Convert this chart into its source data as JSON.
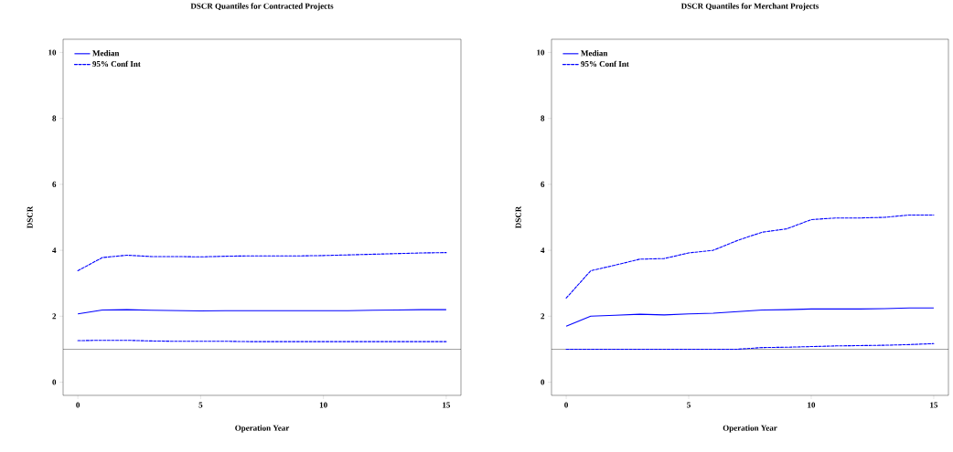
{
  "chart_data": [
    {
      "type": "line",
      "title": "DSCR Quantiles for Contracted Projects",
      "xlabel": "Operation Year",
      "ylabel": "DSCR",
      "x": [
        0,
        1,
        2,
        3,
        4,
        5,
        6,
        7,
        8,
        9,
        10,
        11,
        12,
        13,
        14,
        15
      ],
      "xlim": [
        -0.6,
        15.6
      ],
      "ylim": [
        -0.4,
        10.4
      ],
      "xticks": [
        0,
        5,
        10,
        15
      ],
      "yticks": [
        0,
        2,
        4,
        6,
        8,
        10
      ],
      "grid": false,
      "legend": "top left",
      "marker": "none",
      "series": [
        {
          "name": "Median",
          "color": "#0000ff",
          "line_style": "solid",
          "values": [
            2.07,
            2.19,
            2.2,
            2.18,
            2.17,
            2.16,
            2.17,
            2.17,
            2.17,
            2.17,
            2.17,
            2.17,
            2.18,
            2.19,
            2.2,
            2.2
          ]
        },
        {
          "name": "95% Conf Int",
          "color": "#0000ff",
          "line_style": "dashed",
          "values": [
            3.38,
            3.78,
            3.85,
            3.81,
            3.81,
            3.8,
            3.82,
            3.83,
            3.83,
            3.83,
            3.84,
            3.86,
            3.88,
            3.9,
            3.92,
            3.93
          ]
        },
        {
          "color": "#0000ff",
          "line_style": "dashed",
          "values": [
            1.26,
            1.27,
            1.27,
            1.25,
            1.24,
            1.24,
            1.24,
            1.23,
            1.23,
            1.23,
            1.23,
            1.23,
            1.23,
            1.23,
            1.23,
            1.23
          ]
        }
      ],
      "ref_lines": [
        {
          "axis": "y",
          "value": 1,
          "color": "#000000",
          "line_style": "solid"
        }
      ]
    },
    {
      "type": "line",
      "title": "DSCR Quantiles for Merchant Projects",
      "xlabel": "Operation Year",
      "ylabel": "DSCR",
      "x": [
        0,
        1,
        2,
        3,
        4,
        5,
        6,
        7,
        8,
        9,
        10,
        11,
        12,
        13,
        14,
        15
      ],
      "xlim": [
        -0.6,
        15.6
      ],
      "ylim": [
        -0.4,
        10.4
      ],
      "xticks": [
        0,
        5,
        10,
        15
      ],
      "yticks": [
        0,
        2,
        4,
        6,
        8,
        10
      ],
      "grid": false,
      "legend": "top left",
      "marker": "none",
      "series": [
        {
          "name": "Median",
          "color": "#0000ff",
          "line_style": "solid",
          "values": [
            1.7,
            2.0,
            2.03,
            2.06,
            2.04,
            2.07,
            2.09,
            2.14,
            2.19,
            2.2,
            2.22,
            2.22,
            2.22,
            2.23,
            2.25,
            2.25
          ]
        },
        {
          "name": "95% Conf Int",
          "color": "#0000ff",
          "line_style": "dashed",
          "values": [
            2.55,
            3.38,
            3.55,
            3.73,
            3.75,
            3.92,
            4.0,
            4.3,
            4.55,
            4.65,
            4.93,
            4.98,
            4.98,
            5.0,
            5.07,
            5.07
          ]
        },
        {
          "color": "#0000ff",
          "line_style": "dashed",
          "values": [
            1.0,
            1.0,
            1.0,
            1.0,
            1.0,
            1.0,
            1.0,
            1.0,
            1.05,
            1.06,
            1.08,
            1.1,
            1.11,
            1.12,
            1.14,
            1.17
          ]
        }
      ],
      "ref_lines": [
        {
          "axis": "y",
          "value": 1,
          "color": "#000000",
          "line_style": "solid"
        }
      ]
    }
  ]
}
